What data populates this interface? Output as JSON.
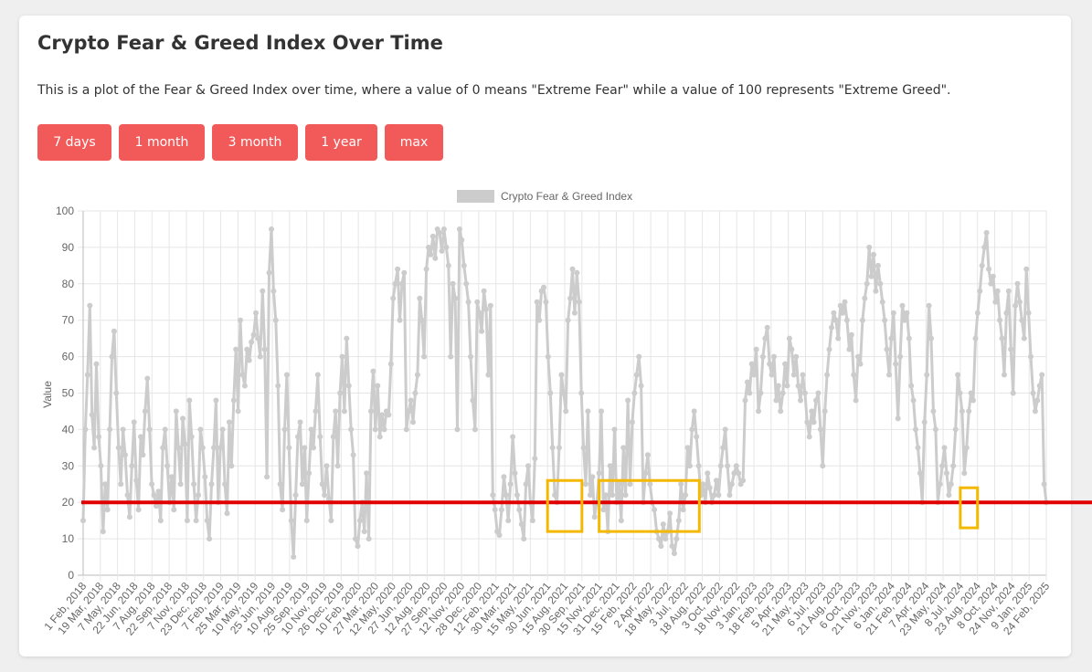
{
  "card": {
    "title": "Crypto Fear & Greed Index Over Time",
    "description": "This is a plot of the Fear & Greed Index over time, where a value of 0 means \"Extreme Fear\" while a value of 100 represents \"Extreme Greed\"."
  },
  "buttons": [
    "7 days",
    "1 month",
    "3 month",
    "1 year",
    "max"
  ],
  "colors": {
    "button": "#f25a5a",
    "series": "#cccccc",
    "threshold": "#e00000",
    "highlight": "#f5b800"
  },
  "chart_data": {
    "type": "line",
    "title": "",
    "legend": {
      "label": "Crypto Fear & Greed Index",
      "position": "top"
    },
    "xlabel": "",
    "ylabel": "Value",
    "ylim": [
      0,
      100
    ],
    "yticks": [
      0,
      10,
      20,
      30,
      40,
      50,
      60,
      70,
      80,
      90,
      100
    ],
    "grid": true,
    "xticks": [
      "1 Feb, 2018",
      "19 Mar, 2018",
      "7 May, 2018",
      "22 Jun, 2018",
      "7 Aug, 2018",
      "22 Sep, 2018",
      "7 Nov, 2018",
      "23 Dec, 2018",
      "7 Feb, 2019",
      "25 Mar, 2019",
      "10 May, 2019",
      "25 Jun, 2019",
      "10 Aug, 2019",
      "25 Sep, 2019",
      "10 Nov, 2019",
      "26 Dec, 2019",
      "10 Feb, 2020",
      "27 Mar, 2020",
      "12 May, 2020",
      "27 Jun, 2020",
      "12 Aug, 2020",
      "27 Sep, 2020",
      "12 Nov, 2020",
      "28 Dec, 2020",
      "12 Feb, 2021",
      "30 Mar, 2021",
      "15 May, 2021",
      "30 Jun, 2021",
      "15 Aug, 2021",
      "30 Sep, 2021",
      "15 Nov, 2021",
      "31 Dec, 2021",
      "15 Feb, 2022",
      "2 Apr, 2022",
      "18 May, 2022",
      "3 Jul, 2022",
      "18 Aug, 2022",
      "3 Oct, 2022",
      "18 Nov, 2022",
      "3 Jan, 2023",
      "18 Feb, 2023",
      "5 Apr, 2023",
      "21 May, 2023",
      "6 Jul, 2023",
      "21 Aug, 2023",
      "6 Oct, 2023",
      "21 Nov, 2023",
      "6 Jan, 2024",
      "21 Feb, 2024",
      "7 Apr, 2024",
      "23 May, 2024",
      "8 Jul, 2024",
      "23 Aug, 2024",
      "8 Oct, 2024",
      "24 Nov, 2024",
      "9 Jan, 2025",
      "24 Feb, 2025"
    ],
    "series": [
      {
        "name": "Crypto Fear & Greed Index",
        "values": [
          15,
          40,
          55,
          74,
          44,
          35,
          58,
          38,
          30,
          12,
          25,
          18,
          40,
          60,
          67,
          50,
          35,
          25,
          40,
          33,
          22,
          16,
          30,
          42,
          26,
          18,
          38,
          33,
          45,
          54,
          40,
          25,
          22,
          19,
          23,
          15,
          35,
          40,
          30,
          20,
          27,
          18,
          45,
          35,
          25,
          43,
          36,
          15,
          48,
          38,
          25,
          15,
          22,
          40,
          35,
          27,
          15,
          10,
          25,
          35,
          48,
          20,
          35,
          40,
          25,
          17,
          42,
          30,
          48,
          62,
          45,
          70,
          55,
          52,
          62,
          59,
          64,
          66,
          72,
          65,
          60,
          78,
          62,
          27,
          83,
          95,
          78,
          70,
          52,
          25,
          18,
          40,
          55,
          35,
          15,
          5,
          22,
          38,
          42,
          25,
          35,
          15,
          28,
          40,
          35,
          45,
          55,
          38,
          25,
          22,
          30,
          21,
          15,
          38,
          45,
          30,
          50,
          60,
          45,
          65,
          52,
          40,
          33,
          10,
          8,
          15,
          20,
          12,
          28,
          10,
          45,
          56,
          40,
          52,
          38,
          44,
          40,
          45,
          44,
          58,
          76,
          80,
          84,
          70,
          80,
          83,
          40,
          45,
          48,
          42,
          50,
          55,
          76,
          70,
          60,
          84,
          90,
          88,
          93,
          87,
          95,
          94,
          89,
          95,
          90,
          85,
          60,
          80,
          76,
          40,
          95,
          92,
          85,
          80,
          75,
          60,
          48,
          40,
          75,
          72,
          67,
          78,
          73,
          55,
          74,
          22,
          18,
          12,
          11,
          18,
          27,
          22,
          15,
          25,
          38,
          28,
          22,
          18,
          14,
          10,
          25,
          30,
          20,
          15,
          32,
          75,
          70,
          78,
          79,
          75,
          60,
          50,
          35,
          22,
          20,
          35,
          55,
          50,
          45,
          70,
          76,
          84,
          72,
          83,
          75,
          50,
          35,
          25,
          45,
          22,
          27,
          16,
          20,
          28,
          45,
          18,
          22,
          12,
          30,
          22,
          40,
          20,
          25,
          15,
          35,
          22,
          48,
          25,
          42,
          50,
          55,
          60,
          52,
          20,
          28,
          33,
          25,
          20,
          18,
          12,
          10,
          8,
          14,
          10,
          12,
          17,
          8,
          6,
          10,
          15,
          25,
          18,
          22,
          35,
          30,
          40,
          45,
          38,
          30,
          22,
          25,
          20,
          28,
          24,
          20,
          22,
          26,
          22,
          30,
          35,
          40,
          30,
          22,
          25,
          28,
          30,
          28,
          25,
          26,
          48,
          53,
          50,
          58,
          55,
          62,
          45,
          50,
          60,
          65,
          68,
          58,
          55,
          60,
          48,
          52,
          45,
          50,
          58,
          52,
          65,
          62,
          55,
          60,
          52,
          48,
          55,
          50,
          42,
          38,
          45,
          42,
          48,
          50,
          40,
          30,
          45,
          55,
          62,
          68,
          72,
          70,
          65,
          74,
          72,
          75,
          70,
          62,
          66,
          55,
          48,
          60,
          58,
          70,
          76,
          80,
          90,
          82,
          88,
          78,
          85,
          80,
          75,
          70,
          62,
          55,
          65,
          72,
          58,
          43,
          60,
          74,
          70,
          72,
          65,
          52,
          48,
          40,
          35,
          28,
          20,
          42,
          55,
          74,
          65,
          45,
          40,
          20,
          25,
          30,
          35,
          28,
          22,
          25,
          30,
          40,
          55,
          50,
          45,
          28,
          35,
          45,
          50,
          48,
          65,
          72,
          78,
          85,
          90,
          94,
          84,
          80,
          82,
          75,
          78,
          70,
          65,
          55,
          72,
          78,
          62,
          50,
          74,
          80,
          75,
          70,
          65,
          84,
          72,
          60,
          50,
          45,
          48,
          52,
          55,
          25,
          20
        ]
      }
    ],
    "annotations": [
      {
        "type": "horizontal-line",
        "y": 20,
        "color": "#e00000"
      },
      {
        "type": "box",
        "x": [
          "30 Jun, 2021",
          "30 Sep, 2021"
        ],
        "y": [
          12,
          26
        ],
        "color": "#f5b800"
      },
      {
        "type": "box",
        "x": [
          "15 Nov, 2021",
          "10 Aug, 2022"
        ],
        "y": [
          12,
          26
        ],
        "color": "#f5b800"
      },
      {
        "type": "box",
        "x": [
          "8 Jul, 2024",
          "23 Aug, 2024"
        ],
        "y": [
          13,
          24
        ],
        "color": "#f5b800"
      }
    ]
  }
}
